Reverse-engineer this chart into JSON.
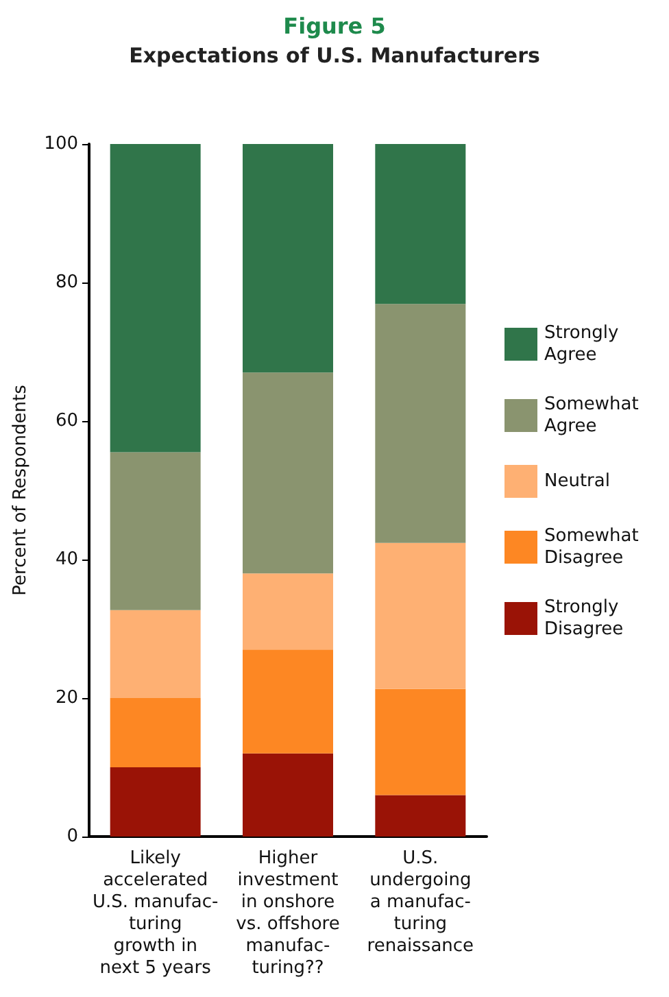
{
  "chart_data": {
    "type": "bar",
    "title": "Figure 5",
    "subtitle": "Expectations of U.S. Manufacturers",
    "ylabel": "Percent of Respondents",
    "categories": [
      "Likely\naccelerated\nU.S. manufac-\nturing\ngrowth in\nnext 5 years",
      "Higher\ninvestment\nin onshore\nvs. offshore\nmanufac-\nturing??",
      "U.S.\nundergoing\na manufac-\nturing\nrenaissance"
    ],
    "stacked": true,
    "series": [
      {
        "name": "Strongly Disagree",
        "color": "#9a1306",
        "values": [
          10,
          12,
          6
        ]
      },
      {
        "name": "Somewhat Disagree",
        "color": "#fd8723",
        "values": [
          10,
          15,
          15.3
        ]
      },
      {
        "name": "Neutral",
        "color": "#feb073",
        "values": [
          12.7,
          11,
          21.1
        ]
      },
      {
        "name": "Somewhat Agree",
        "color": "#8a946f",
        "values": [
          22.8,
          29,
          34.5
        ]
      },
      {
        "name": "Strongly Agree",
        "color": "#30754a",
        "values": [
          44.5,
          33,
          23.1
        ]
      }
    ],
    "ylim": [
      0,
      100
    ],
    "yticks": [
      0,
      20,
      40,
      60,
      80,
      100
    ],
    "grid": false,
    "legend": "right"
  }
}
